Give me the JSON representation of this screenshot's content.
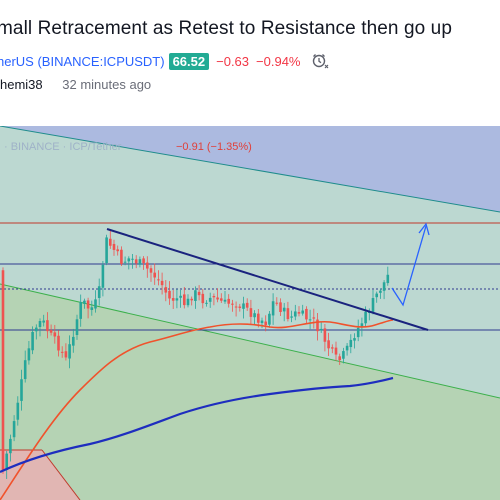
{
  "idea": {
    "title": "mall Retracement as Retest to Resistance then go up",
    "symbol_full": "herUS (BINANCE:ICPUSDT)",
    "price": "66.52",
    "change": "−0.63",
    "change_pct": "−0.94%",
    "author": "hemi38",
    "published": "32 minutes ago"
  },
  "chart": {
    "watermark": "· BINANCE · ICP/Tether",
    "header_change": "−0.91 (−1.35%)",
    "colors": {
      "up": "#26a69a",
      "down": "#ef5350",
      "ma_fast": "#f0522c",
      "ma_slow": "#1e2dbf",
      "trendline": "#1a237e",
      "arrow": "#2962ff",
      "channel_top": "#1f8c8c",
      "channel_bottom": "#3cb04c",
      "resistance": "#c0392b",
      "support": "#2f3a8f"
    }
  }
}
